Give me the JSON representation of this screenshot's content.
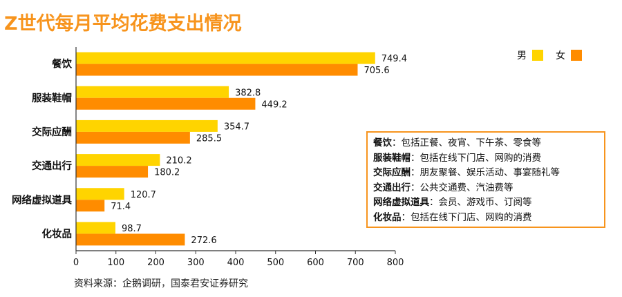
{
  "title": "Z世代每月平均花费支出情况",
  "source": "资料来源：企鹅调研，国泰君安证券研究",
  "legend": [
    {
      "label": "男",
      "color": "#ffd400"
    },
    {
      "label": "女",
      "color": "#ff8c00"
    }
  ],
  "notes": [
    {
      "term": "餐饮",
      "desc": "：包括正餐、夜宵、下午茶、零食等"
    },
    {
      "term": "服装鞋帽",
      "desc": "：包括在线下门店、网购的消费"
    },
    {
      "term": "交际应酬",
      "desc": "：朋友聚餐、娱乐活动、事宴随礼等"
    },
    {
      "term": "交通出行",
      "desc": "：公共交通费、汽油费等"
    },
    {
      "term": "网络虚拟道具",
      "desc": "：会员、游戏币、订阅等"
    },
    {
      "term": "化妆品",
      "desc": "：包括在线下门店、网购的消费"
    }
  ],
  "chart_data": {
    "type": "bar",
    "orientation": "horizontal",
    "categories": [
      "餐饮",
      "服装鞋帽",
      "交际应酬",
      "交通出行",
      "网络虚拟道具",
      "化妆品"
    ],
    "series": [
      {
        "name": "男",
        "color": "#ffd400",
        "values": [
          749.4,
          382.8,
          354.7,
          210.2,
          120.7,
          98.7
        ]
      },
      {
        "name": "女",
        "color": "#ff8c00",
        "values": [
          705.6,
          449.2,
          285.5,
          180.2,
          71.4,
          272.6
        ]
      }
    ],
    "xlim": [
      0,
      800
    ],
    "xticks": [
      0,
      100,
      200,
      300,
      400,
      500,
      600,
      700,
      800
    ],
    "grid": false,
    "legend_position": "top-right"
  }
}
